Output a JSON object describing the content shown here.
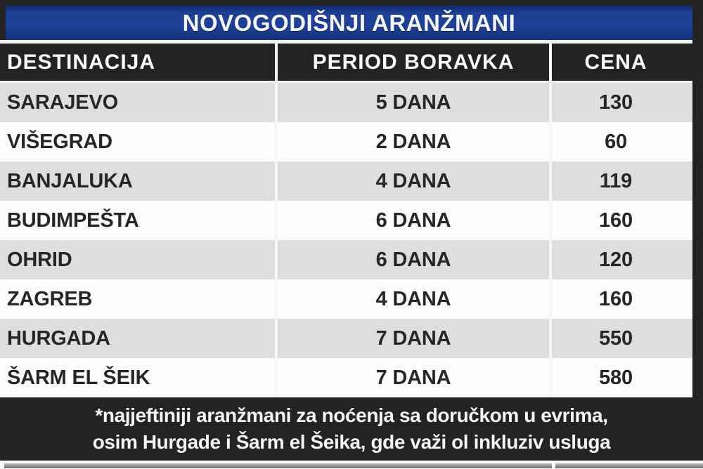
{
  "chart_data": {
    "type": "table",
    "title": "NOVOGODIŠNJI ARANŽMANI",
    "columns": [
      "DESTINACIJA",
      "PERIOD BORAVKA",
      "CENA"
    ],
    "rows": [
      [
        "SARAJEVO",
        "5 DANA",
        130
      ],
      [
        "VIŠEGRAD",
        "2 DANA",
        60
      ],
      [
        "BANJALUKA",
        "4 DANA",
        119
      ],
      [
        "BUDIMPEŠTA",
        "6 DANA",
        160
      ],
      [
        "OHRID",
        "6 DANA",
        120
      ],
      [
        "ZAGREB",
        "4 DANA",
        160
      ],
      [
        "HURGADA",
        "7 DANA",
        550
      ],
      [
        "ŠARM EL ŠEIK",
        "7 DANA",
        580
      ]
    ],
    "footnote_lines": [
      "*najjeftiniji aranžmani za noćenja sa doručkom u evrima,",
      "osim Hurgade i Šarm el Šeika, gde važi ol inkluziv usluga"
    ],
    "layout": {
      "legend": "none",
      "grid": "off",
      "row_striping": "gray-white alternating",
      "price_unit": "evri (per footnote)"
    },
    "colors": {
      "title_bar_blue": "#1e4199",
      "header_black": "#232323",
      "row_gray": "#dcdee0",
      "row_white": "#fcfdfd",
      "footnote_black": "#232323",
      "text_dark": "#262626",
      "text_light": "#f5f5f5"
    }
  }
}
